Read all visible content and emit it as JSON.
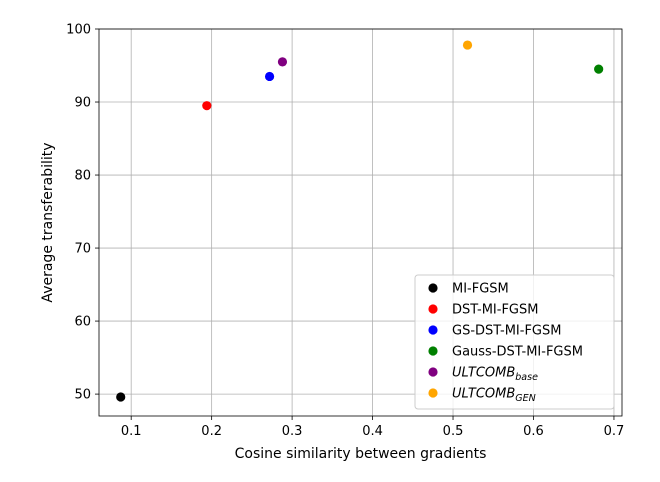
{
  "chart_data": {
    "type": "scatter",
    "xlabel": "Cosine similarity between gradients",
    "ylabel": "Average transferability",
    "xlim": [
      0.06,
      0.71
    ],
    "ylim": [
      47,
      100
    ],
    "x_ticks": [
      0.1,
      0.2,
      0.3,
      0.4,
      0.5,
      0.6,
      0.7
    ],
    "x_tick_labels": [
      "0.1",
      "0.2",
      "0.3",
      "0.4",
      "0.5",
      "0.6",
      "0.7"
    ],
    "y_ticks": [
      50,
      60,
      70,
      80,
      90,
      100
    ],
    "y_tick_labels": [
      "50",
      "60",
      "70",
      "80",
      "90",
      "100"
    ],
    "grid": true,
    "legend_position": "lower-right",
    "series": [
      {
        "name": "MI-FGSM",
        "color": "#000000",
        "points": [
          {
            "x": 0.087,
            "y": 49.6
          }
        ]
      },
      {
        "name": "DST-MI-FGSM",
        "color": "#ff0000",
        "points": [
          {
            "x": 0.194,
            "y": 89.5
          }
        ]
      },
      {
        "name": "GS-DST-MI-FGSM",
        "color": "#0000ff",
        "points": [
          {
            "x": 0.272,
            "y": 93.5
          }
        ]
      },
      {
        "name": "Gauss-DST-MI-FGSM",
        "color": "#008000",
        "points": [
          {
            "x": 0.681,
            "y": 94.5
          }
        ]
      },
      {
        "name": "ULTCOMB",
        "subscript": "base",
        "italic": true,
        "color": "#800080",
        "points": [
          {
            "x": 0.288,
            "y": 95.5
          }
        ]
      },
      {
        "name": "ULTCOMB",
        "subscript": "GEN",
        "italic": true,
        "color": "#ffa500",
        "points": [
          {
            "x": 0.518,
            "y": 97.8
          }
        ]
      }
    ]
  }
}
